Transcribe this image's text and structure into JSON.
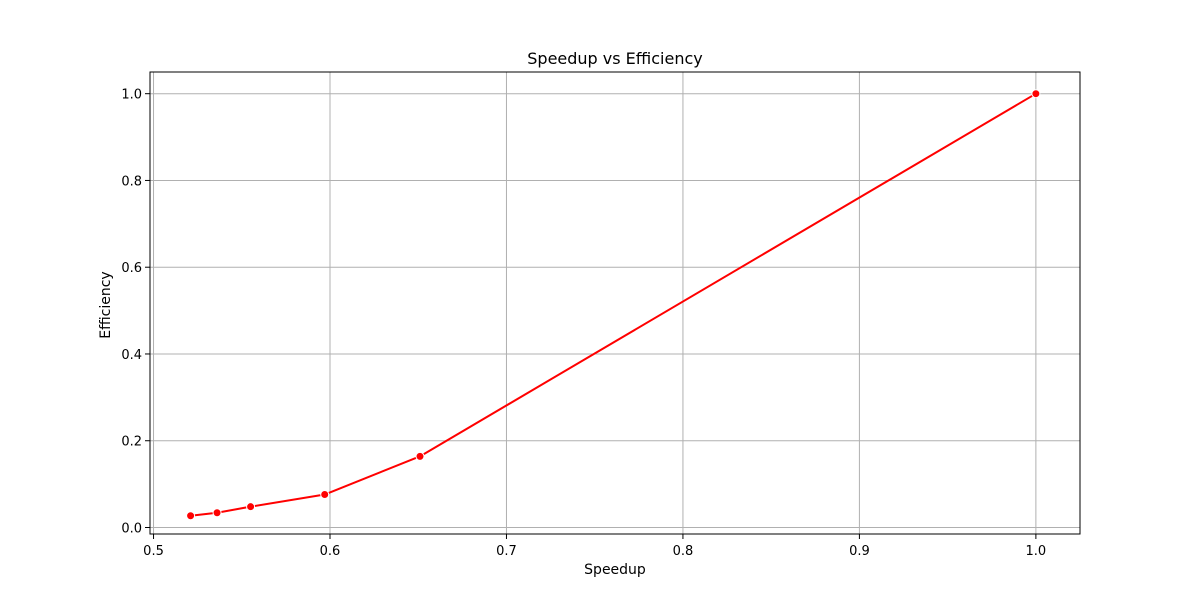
{
  "chart_data": {
    "type": "line",
    "title": "Speedup vs Efficiency",
    "xlabel": "Speedup",
    "ylabel": "Efficiency",
    "xlim": [
      0.498,
      1.025
    ],
    "ylim": [
      -0.015,
      1.05
    ],
    "x_ticks": [
      0.5,
      0.6,
      0.7,
      0.8,
      0.9,
      1.0
    ],
    "x_tick_labels": [
      "0.5",
      "0.6",
      "0.7",
      "0.8",
      "0.9",
      "1.0"
    ],
    "y_ticks": [
      0.0,
      0.2,
      0.4,
      0.6,
      0.8,
      1.0
    ],
    "y_tick_labels": [
      "0.0",
      "0.2",
      "0.4",
      "0.6",
      "0.8",
      "1.0"
    ],
    "grid": true,
    "series": [
      {
        "color": "#ff0000",
        "marker": "circle",
        "points": [
          {
            "x": 0.521,
            "y": 0.027
          },
          {
            "x": 0.536,
            "y": 0.034
          },
          {
            "x": 0.555,
            "y": 0.048
          },
          {
            "x": 0.597,
            "y": 0.076
          },
          {
            "x": 0.651,
            "y": 0.164
          },
          {
            "x": 1.0,
            "y": 1.0
          }
        ]
      }
    ]
  }
}
